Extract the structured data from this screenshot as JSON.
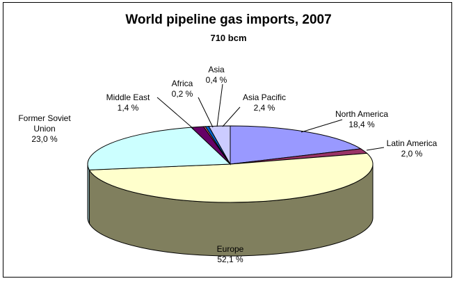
{
  "chart_data": {
    "type": "pie",
    "title": "World pipeline gas imports, 2007",
    "subtitle": "710 bcm",
    "slices": [
      {
        "name": "North America",
        "value_label": "18,4 %",
        "value": 18.4,
        "color": "#9999ff",
        "side": "#6a6ab4"
      },
      {
        "name": "Latin America",
        "value_label": "2,0 %",
        "value": 2.0,
        "color": "#993366",
        "side": "#6b2447"
      },
      {
        "name": "Europe",
        "value_label": "52,1 %",
        "value": 52.1,
        "color": "#ffffcc",
        "side": "#807f5e"
      },
      {
        "name": "Former Soviet Union",
        "value_label": "23,0 %",
        "value": 23.0,
        "color": "#ccffff",
        "side": "#8fb2b2"
      },
      {
        "name": "Middle East",
        "value_label": "1,4 %",
        "value": 1.4,
        "color": "#660066",
        "side": "#470047"
      },
      {
        "name": "Africa",
        "value_label": "0,2 %",
        "value": 0.2,
        "color": "#ff8080",
        "side": "#b35a5a"
      },
      {
        "name": "Asia",
        "value_label": "0,4 %",
        "value": 0.4,
        "color": "#0066cc",
        "side": "#00478f"
      },
      {
        "name": "Asia Pacific",
        "value_label": "2,4 %",
        "value": 2.4,
        "color": "#ccccff",
        "side": "#8f8fb3"
      }
    ]
  }
}
